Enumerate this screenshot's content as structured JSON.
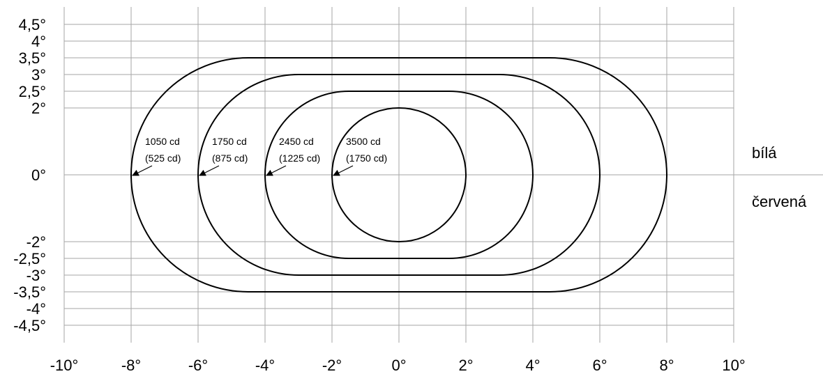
{
  "chart_data": {
    "type": "diagram",
    "x_ticks": [
      {
        "v": -10,
        "label": "-10°"
      },
      {
        "v": -8,
        "label": "-8°"
      },
      {
        "v": -6,
        "label": "-6°"
      },
      {
        "v": -4,
        "label": "-4°"
      },
      {
        "v": -2,
        "label": "-2°"
      },
      {
        "v": 0,
        "label": "0°"
      },
      {
        "v": 2,
        "label": "2°"
      },
      {
        "v": 4,
        "label": "4°"
      },
      {
        "v": 6,
        "label": "6°"
      },
      {
        "v": 8,
        "label": "8°"
      },
      {
        "v": 10,
        "label": "10°"
      }
    ],
    "y_ticks": [
      {
        "v": 4.5,
        "label": "4,5°"
      },
      {
        "v": 4,
        "label": "4°"
      },
      {
        "v": 3.5,
        "label": "3,5°"
      },
      {
        "v": 3,
        "label": "3°"
      },
      {
        "v": 2.5,
        "label": "2,5°"
      },
      {
        "v": 2,
        "label": "2°"
      },
      {
        "v": 0,
        "label": "0°"
      },
      {
        "v": -2,
        "label": "-2°"
      },
      {
        "v": -2.5,
        "label": "-2,5°"
      },
      {
        "v": -3,
        "label": "-3°"
      },
      {
        "v": -3.5,
        "label": "-3,5°"
      },
      {
        "v": -4,
        "label": "-4°"
      },
      {
        "v": -4.5,
        "label": "-4,5°"
      }
    ],
    "xlim": [
      -10,
      10
    ],
    "ylim": [
      -4.5,
      4.5
    ],
    "grid": true,
    "contours": [
      {
        "half_width": 8,
        "half_height": 3.5,
        "label": "1050 cd",
        "sublabel": "(525 cd)"
      },
      {
        "half_width": 6,
        "half_height": 3,
        "label": "1750 cd",
        "sublabel": "(875 cd)"
      },
      {
        "half_width": 4,
        "half_height": 2.5,
        "label": "2450 cd",
        "sublabel": "(1225 cd)"
      },
      {
        "half_width": 2,
        "half_height": 2,
        "label": "3500 cd",
        "sublabel": "(1750 cd)"
      }
    ],
    "regions": {
      "upper": "bílá",
      "lower": "červená"
    }
  }
}
